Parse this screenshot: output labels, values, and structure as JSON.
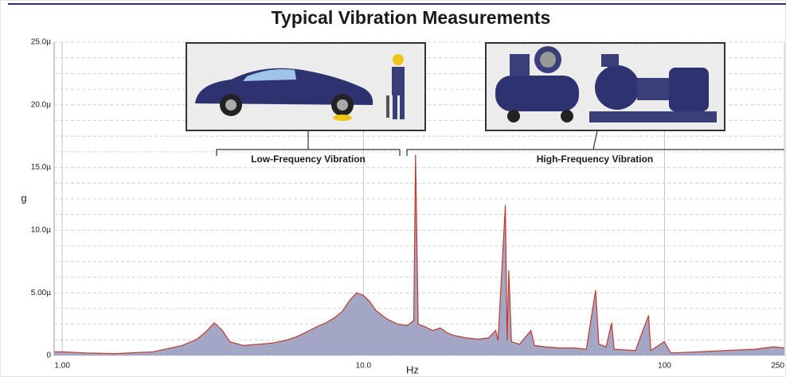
{
  "chart_data": {
    "type": "area",
    "title": "Typical Vibration Measurements",
    "x_label": "Hz",
    "y_label": "g",
    "annotations": [
      "Low-Frequency Vibration",
      "High-Frequency Vibration"
    ],
    "x_scale": "log",
    "xlim": [
      0.94,
      250
    ],
    "xticks": [
      {
        "value": 1,
        "label": "1.00"
      },
      {
        "value": 10,
        "label": "10.0"
      },
      100,
      250
    ],
    "ylim": [
      0,
      25
    ],
    "yticks": [
      0,
      {
        "value": 5,
        "label": "5.00µ"
      },
      {
        "value": 10,
        "label": "10.0µ"
      },
      {
        "value": 15,
        "label": "15.0µ"
      },
      {
        "value": 20,
        "label": "20.0µ"
      },
      {
        "value": 25,
        "label": "25.0µ"
      }
    ],
    "y_minor_ticks": [
      1.25,
      2.5,
      3.75,
      6.25,
      7.5,
      8.75,
      11.25,
      12.5,
      13.75,
      16.25,
      17.5,
      18.75,
      21.25,
      22.5,
      23.75
    ],
    "grid": true,
    "fill_color": "#a3a6c4",
    "line_color": "#c0392b",
    "x": [
      0.94,
      1.0,
      1.2,
      1.5,
      2.0,
      2.5,
      2.8,
      3.0,
      3.2,
      3.4,
      3.6,
      4.0,
      4.5,
      5.0,
      5.5,
      6.0,
      6.5,
      7.0,
      7.5,
      8.0,
      8.5,
      9.0,
      9.5,
      10,
      10.5,
      11,
      12,
      13,
      14,
      14.7,
      14.9,
      15.2,
      16,
      17,
      18,
      19,
      20,
      22,
      24,
      26,
      27.5,
      28,
      29.6,
      30,
      30.4,
      31,
      33,
      36,
      37,
      40,
      45,
      50,
      55,
      59,
      60.5,
      64,
      66.7,
      68,
      80,
      88.5,
      90,
      99.7,
      105,
      130,
      160,
      200,
      230,
      250
    ],
    "values": [
      0.3,
      0.3,
      0.2,
      0.15,
      0.3,
      0.8,
      1.3,
      1.9,
      2.6,
      2.0,
      1.1,
      0.8,
      0.9,
      1.0,
      1.2,
      1.5,
      1.9,
      2.3,
      2.6,
      3.0,
      3.5,
      4.4,
      5.0,
      4.8,
      4.3,
      3.6,
      2.9,
      2.5,
      2.4,
      2.8,
      16.0,
      2.5,
      2.3,
      2.0,
      2.2,
      1.8,
      1.6,
      1.4,
      1.3,
      1.4,
      2.0,
      1.2,
      12.0,
      1.2,
      6.8,
      1.1,
      0.9,
      2.0,
      0.8,
      0.7,
      0.6,
      0.6,
      0.5,
      5.2,
      0.9,
      0.7,
      2.6,
      0.5,
      0.4,
      3.2,
      0.4,
      1.1,
      0.2,
      0.3,
      0.4,
      0.5,
      0.7,
      0.6
    ]
  }
}
